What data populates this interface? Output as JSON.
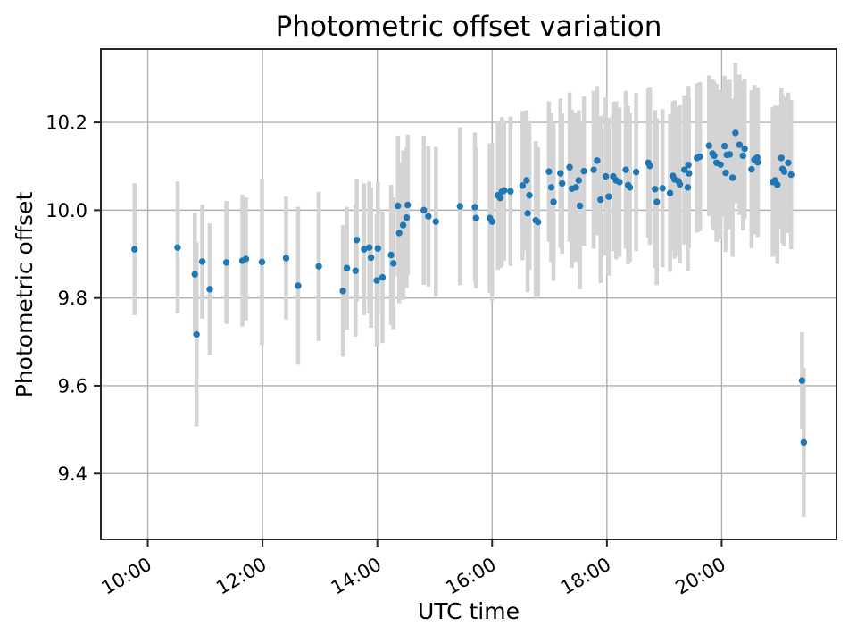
{
  "figure": {
    "background": "#ffffff"
  },
  "chart_data": {
    "type": "scatter",
    "title": "Photometric offset variation",
    "xlabel": "UTC time",
    "ylabel": "Photometric offset",
    "grid": true,
    "legend": "none",
    "marker_color": "#1f77b4",
    "errorbar_color": "#d4d4d4",
    "grid_color": "#b0b0b0",
    "spine_color": "#262626",
    "text_color": "#000000",
    "xlim_hours": [
      9.183,
      22.0
    ],
    "ylim": [
      9.25,
      10.367
    ],
    "x_ticks": [
      {
        "t": 10,
        "label": "10:00"
      },
      {
        "t": 12,
        "label": "12:00"
      },
      {
        "t": 14,
        "label": "14:00"
      },
      {
        "t": 16,
        "label": "16:00"
      },
      {
        "t": 18,
        "label": "18:00"
      },
      {
        "t": 20,
        "label": "20:00"
      }
    ],
    "y_ticks": [
      {
        "v": 9.4,
        "label": "9.4"
      },
      {
        "v": 9.6,
        "label": "9.6"
      },
      {
        "v": 9.8,
        "label": "9.8"
      },
      {
        "v": 10.0,
        "label": "10.0"
      },
      {
        "v": 10.2,
        "label": "10.2"
      }
    ],
    "points_format": [
      "utc_hours_decimal",
      "photometric_offset",
      "error_plus_minus"
    ],
    "points": [
      [
        9.77,
        9.911,
        0.15
      ],
      [
        10.52,
        9.915,
        0.15
      ],
      [
        10.82,
        9.854,
        0.14
      ],
      [
        10.85,
        9.717,
        0.21
      ],
      [
        10.95,
        9.883,
        0.13
      ],
      [
        11.08,
        9.82,
        0.15
      ],
      [
        11.37,
        9.881,
        0.14
      ],
      [
        11.65,
        9.885,
        0.15
      ],
      [
        11.71,
        9.889,
        0.14
      ],
      [
        11.99,
        9.882,
        0.19
      ],
      [
        12.41,
        9.891,
        0.14
      ],
      [
        12.62,
        9.828,
        0.18
      ],
      [
        12.98,
        9.872,
        0.17
      ],
      [
        13.4,
        9.816,
        0.15
      ],
      [
        13.47,
        9.868,
        0.14
      ],
      [
        13.62,
        9.862,
        0.15
      ],
      [
        13.64,
        9.932,
        0.14
      ],
      [
        13.77,
        9.911,
        0.15
      ],
      [
        13.86,
        9.915,
        0.15
      ],
      [
        13.89,
        9.892,
        0.16
      ],
      [
        13.99,
        9.84,
        0.15
      ],
      [
        14.01,
        9.913,
        0.15
      ],
      [
        14.09,
        9.847,
        0.15
      ],
      [
        14.24,
        9.898,
        0.16
      ],
      [
        14.28,
        9.879,
        0.15
      ],
      [
        14.36,
        10.01,
        0.16
      ],
      [
        14.38,
        9.948,
        0.16
      ],
      [
        14.45,
        9.966,
        0.17
      ],
      [
        14.51,
        9.983,
        0.16
      ],
      [
        14.53,
        10.012,
        0.16
      ],
      [
        14.81,
        10.0,
        0.17
      ],
      [
        14.89,
        9.986,
        0.16
      ],
      [
        15.02,
        9.974,
        0.17
      ],
      [
        15.44,
        10.009,
        0.18
      ],
      [
        15.7,
        10.007,
        0.17
      ],
      [
        15.72,
        9.982,
        0.16
      ],
      [
        15.96,
        9.982,
        0.17
      ],
      [
        16.0,
        9.974,
        0.18
      ],
      [
        16.1,
        10.034,
        0.17
      ],
      [
        16.14,
        10.028,
        0.16
      ],
      [
        16.17,
        10.042,
        0.17
      ],
      [
        16.21,
        10.045,
        0.16
      ],
      [
        16.32,
        10.043,
        0.17
      ],
      [
        16.53,
        10.056,
        0.17
      ],
      [
        16.6,
        10.068,
        0.16
      ],
      [
        16.62,
        9.993,
        0.18
      ],
      [
        16.65,
        10.034,
        0.17
      ],
      [
        16.76,
        9.977,
        0.18
      ],
      [
        16.8,
        9.973,
        0.17
      ],
      [
        16.99,
        10.088,
        0.16
      ],
      [
        17.03,
        10.052,
        0.17
      ],
      [
        17.07,
        10.019,
        0.18
      ],
      [
        17.19,
        10.084,
        0.17
      ],
      [
        17.22,
        10.061,
        0.16
      ],
      [
        17.35,
        10.098,
        0.17
      ],
      [
        17.39,
        10.049,
        0.18
      ],
      [
        17.46,
        10.052,
        0.17
      ],
      [
        17.51,
        10.068,
        0.16
      ],
      [
        17.53,
        10.01,
        0.19
      ],
      [
        17.6,
        10.089,
        0.17
      ],
      [
        17.77,
        10.092,
        0.18
      ],
      [
        17.83,
        10.113,
        0.17
      ],
      [
        17.89,
        10.024,
        0.19
      ],
      [
        17.98,
        10.077,
        0.18
      ],
      [
        18.03,
        10.031,
        0.18
      ],
      [
        18.11,
        10.077,
        0.17
      ],
      [
        18.16,
        10.068,
        0.18
      ],
      [
        18.22,
        10.064,
        0.17
      ],
      [
        18.33,
        10.092,
        0.18
      ],
      [
        18.37,
        10.057,
        0.18
      ],
      [
        18.4,
        10.052,
        0.17
      ],
      [
        18.51,
        10.087,
        0.18
      ],
      [
        18.72,
        10.108,
        0.17
      ],
      [
        18.75,
        10.101,
        0.18
      ],
      [
        18.84,
        10.048,
        0.18
      ],
      [
        18.87,
        10.019,
        0.19
      ],
      [
        18.97,
        10.05,
        0.18
      ],
      [
        19.1,
        10.039,
        0.18
      ],
      [
        19.15,
        10.078,
        0.17
      ],
      [
        19.18,
        10.07,
        0.18
      ],
      [
        19.25,
        10.066,
        0.17
      ],
      [
        19.27,
        10.059,
        0.18
      ],
      [
        19.35,
        10.092,
        0.17
      ],
      [
        19.41,
        10.052,
        0.19
      ],
      [
        19.42,
        10.103,
        0.18
      ],
      [
        19.43,
        10.084,
        0.17
      ],
      [
        19.57,
        10.119,
        0.17
      ],
      [
        19.62,
        10.122,
        0.17
      ],
      [
        19.78,
        10.147,
        0.16
      ],
      [
        19.84,
        10.129,
        0.17
      ],
      [
        19.87,
        10.124,
        0.17
      ],
      [
        19.91,
        10.108,
        0.18
      ],
      [
        19.98,
        10.104,
        0.17
      ],
      [
        20.05,
        10.146,
        0.16
      ],
      [
        20.07,
        10.085,
        0.18
      ],
      [
        20.09,
        10.126,
        0.17
      ],
      [
        20.14,
        10.127,
        0.17
      ],
      [
        20.19,
        10.074,
        0.18
      ],
      [
        20.24,
        10.176,
        0.16
      ],
      [
        20.31,
        10.149,
        0.16
      ],
      [
        20.37,
        10.124,
        0.17
      ],
      [
        20.4,
        10.14,
        0.16
      ],
      [
        20.52,
        10.093,
        0.18
      ],
      [
        20.57,
        10.115,
        0.17
      ],
      [
        20.62,
        10.12,
        0.16
      ],
      [
        20.63,
        10.109,
        0.17
      ],
      [
        20.89,
        10.064,
        0.17
      ],
      [
        20.93,
        10.068,
        0.17
      ],
      [
        20.97,
        10.058,
        0.18
      ],
      [
        21.04,
        10.119,
        0.16
      ],
      [
        21.06,
        10.094,
        0.17
      ],
      [
        21.09,
        10.088,
        0.17
      ],
      [
        21.16,
        10.108,
        0.16
      ],
      [
        21.21,
        10.081,
        0.17
      ],
      [
        21.4,
        9.612,
        0.11
      ],
      [
        21.43,
        9.471,
        0.17
      ]
    ]
  }
}
